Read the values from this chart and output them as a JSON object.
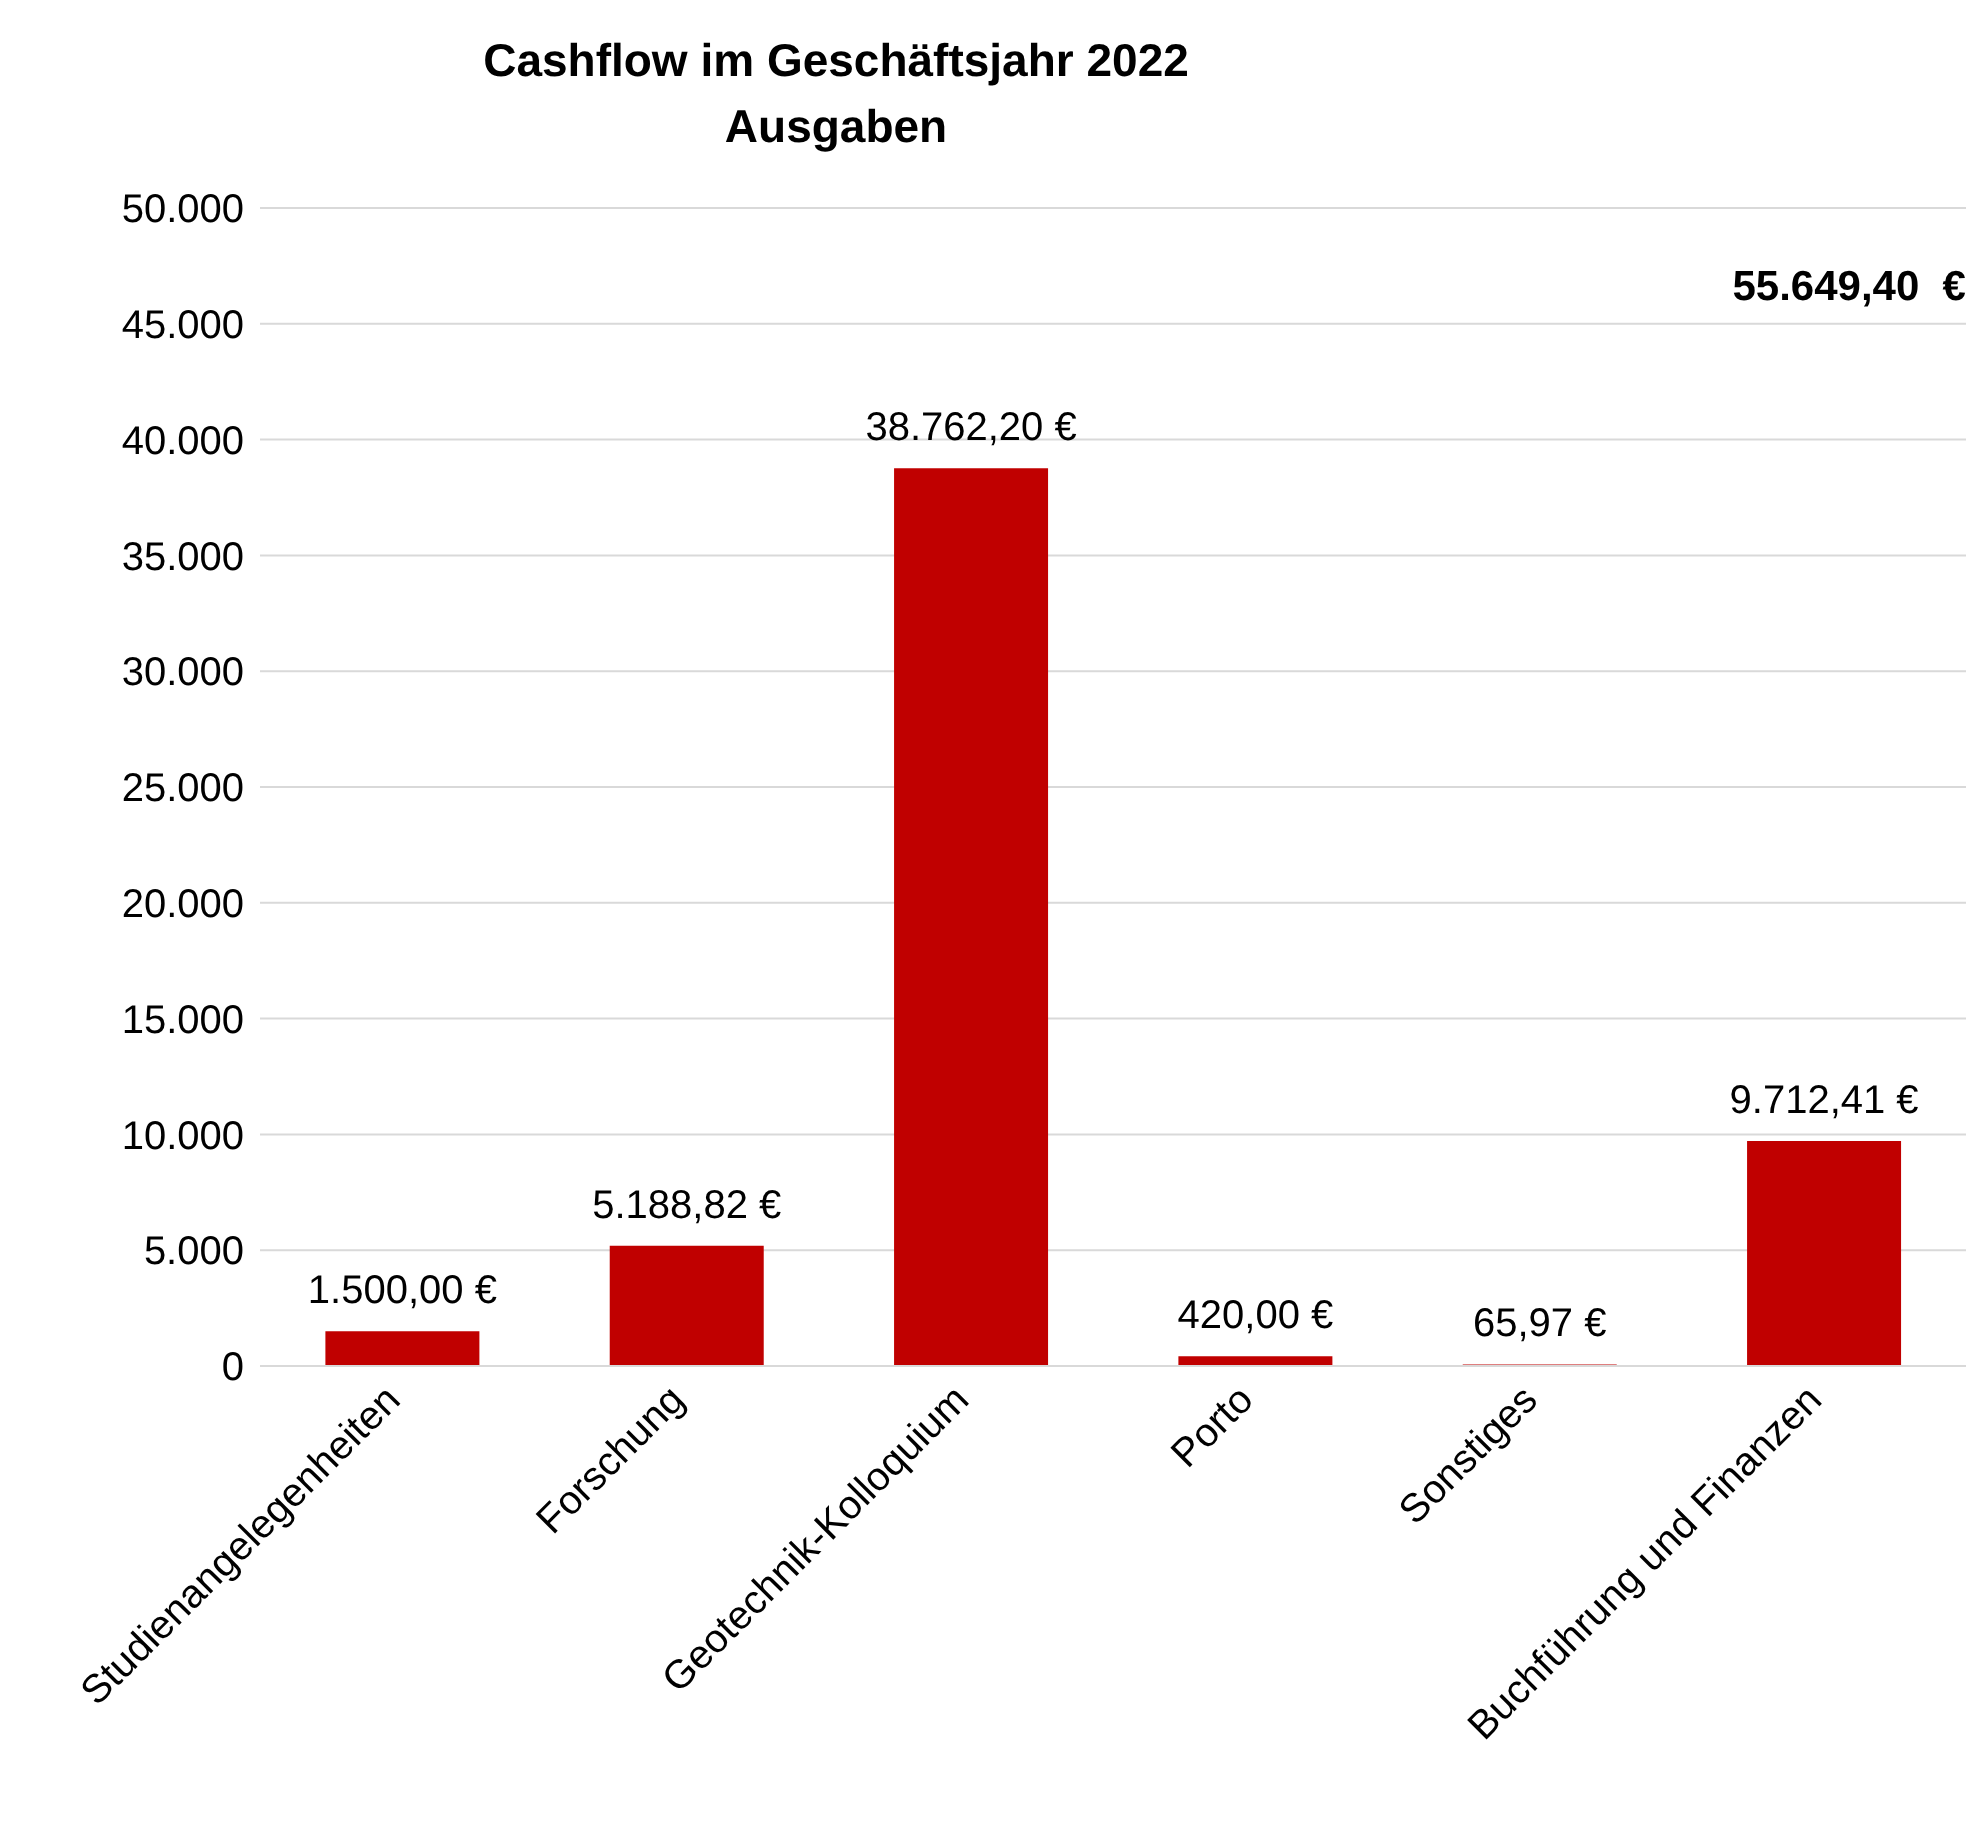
{
  "chart_data": {
    "type": "bar",
    "title": "Cashflow im Geschäftsjahr 2022",
    "subtitle": "Ausgaben",
    "categories": [
      "Studienangelegenheiten",
      "Forschung",
      "Geotechnik-Kolloquium",
      "Porto",
      "Sonstiges",
      "Buchführung und Finanzen"
    ],
    "values": [
      1500,
      5188.82,
      38762.2,
      420,
      65.97,
      9712.41
    ],
    "value_labels": [
      "1.500,00 €",
      "5.188,82 €",
      "38.762,20 €",
      "420,00 €",
      "65,97 €",
      "9.712,41 €"
    ],
    "color": "#c00000",
    "ylim": [
      0,
      50000
    ],
    "yticks": [
      {
        "value": 0,
        "label": "0"
      },
      {
        "value": 5000,
        "label": "5.000"
      },
      {
        "value": 10000,
        "label": "10.000"
      },
      {
        "value": 15000,
        "label": "15.000"
      },
      {
        "value": 20000,
        "label": "20.000"
      },
      {
        "value": 25000,
        "label": "25.000"
      },
      {
        "value": 30000,
        "label": "30.000"
      },
      {
        "value": 35000,
        "label": "35.000"
      },
      {
        "value": 40000,
        "label": "40.000"
      },
      {
        "value": 45000,
        "label": "45.000"
      },
      {
        "value": 50000,
        "label": "50.000"
      }
    ],
    "grid": "y",
    "annotations": [
      "55.649,40  €"
    ]
  }
}
